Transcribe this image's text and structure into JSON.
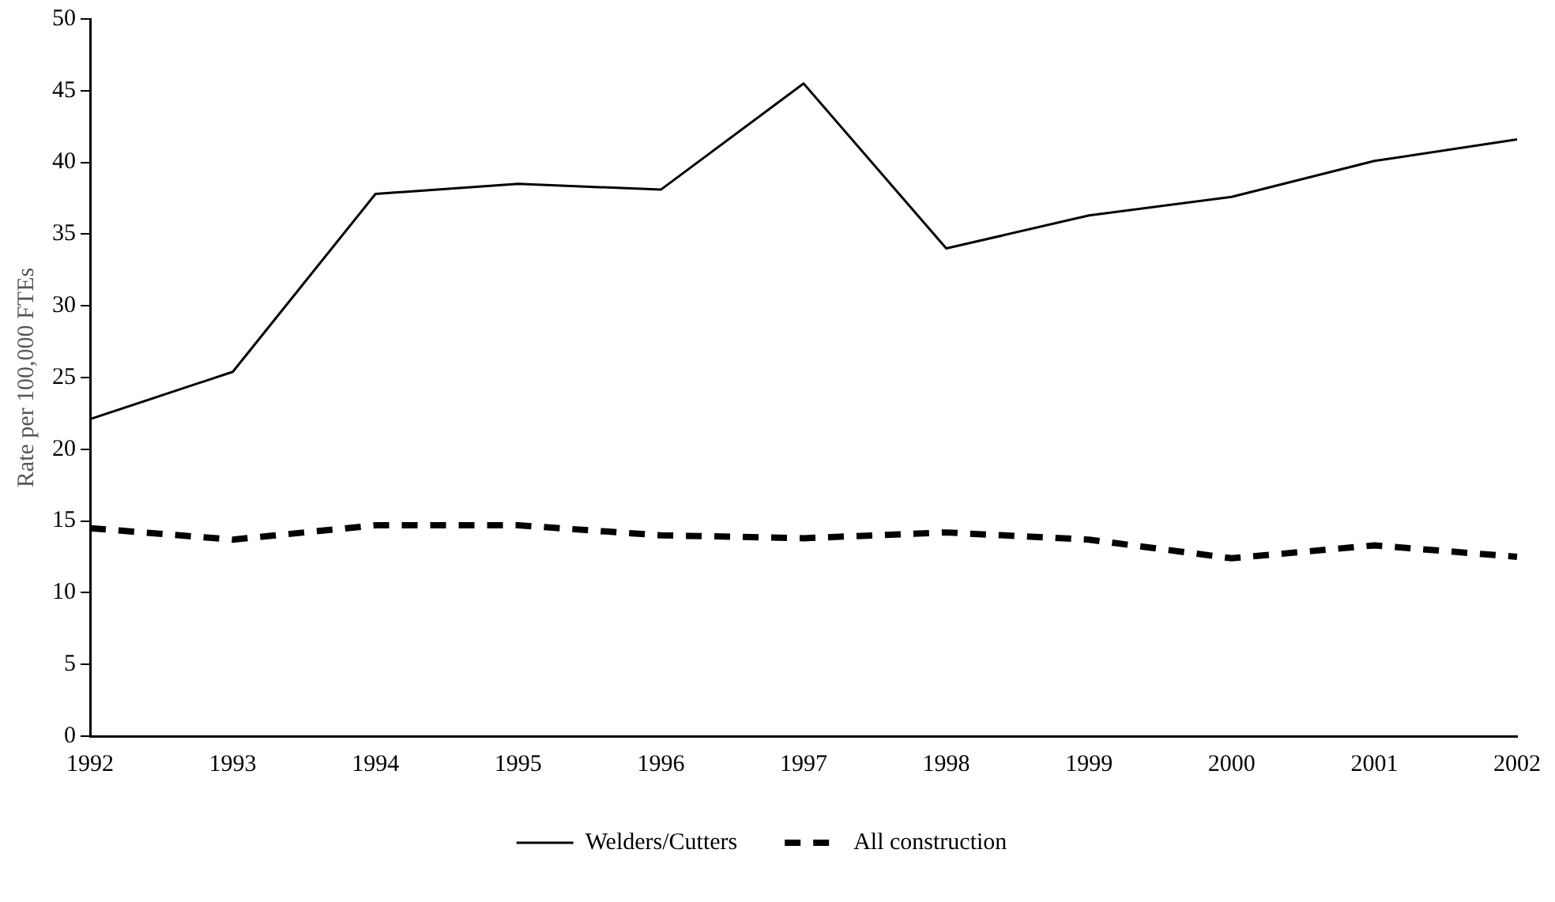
{
  "chart_data": {
    "type": "line",
    "ylabel": "Rate per 100,000 FTEs",
    "categories": [
      "1992",
      "1993",
      "1994",
      "1995",
      "1996",
      "1997",
      "1998",
      "1999",
      "2000",
      "2001",
      "2002"
    ],
    "series": [
      {
        "name": "Welders/Cutters",
        "color": "#000000",
        "line_style": "solid",
        "values": [
          22.1,
          25.4,
          37.8,
          38.5,
          38.1,
          45.5,
          34.0,
          36.3,
          37.6,
          40.1,
          41.6
        ]
      },
      {
        "name": "All construction",
        "color": "#000000",
        "line_style": "dashed",
        "values": [
          14.5,
          13.7,
          14.7,
          14.7,
          14.0,
          13.8,
          14.2,
          13.7,
          12.4,
          13.3,
          12.5
        ]
      }
    ],
    "ylim": [
      0,
      50
    ],
    "yticks": [
      0,
      5,
      10,
      15,
      20,
      25,
      30,
      35,
      40,
      45,
      50
    ],
    "grid": false,
    "legend": "bottom",
    "marker": "none"
  }
}
